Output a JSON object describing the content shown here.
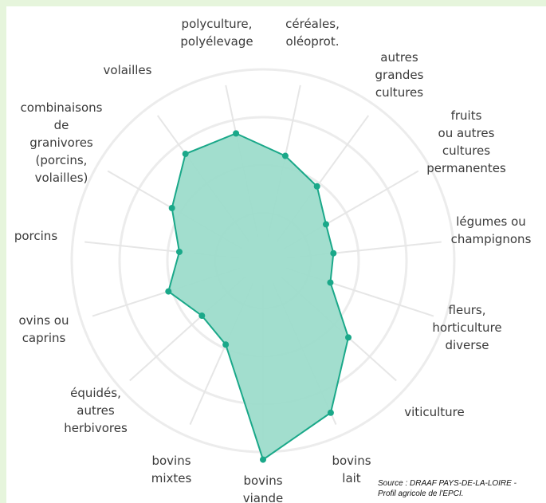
{
  "chart_data": {
    "type": "radar",
    "categories": [
      "polyculture,\npolyélevage",
      "céréales,\noléoprot.",
      "autres\ngrandes\ncultures",
      "fruits\nou autres\ncultures\npermanentes",
      "légumes ou\nchampignons",
      "fleurs,\nhorticulture\ndiverse",
      "viticulture",
      "bovins\nlait",
      "bovins\nviande",
      "bovins\nmixtes",
      "équidés,\nautres\nherbivores",
      "ovins ou\ncaprins",
      "porcins",
      "combinaisons\nde\ngranivores\n(porcins,\nvolailles)",
      "volailles"
    ],
    "values": [
      68,
      56,
      48,
      38,
      37,
      37,
      60,
      87,
      104,
      48,
      43,
      52,
      44,
      55,
      69
    ],
    "color": "#1aa889",
    "fill": "#9ddccb",
    "rlim": [
      0,
      110
    ],
    "rticks": [
      25,
      50,
      75,
      100
    ],
    "grid": true,
    "source": "Source : DRAAF PAYS-DE-LA-LOIRE -\nProfil agricole de l'EPCI."
  }
}
